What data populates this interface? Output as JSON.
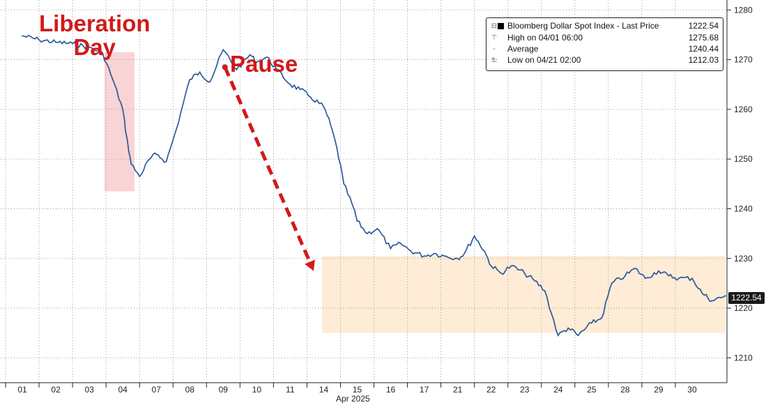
{
  "chart_data": {
    "type": "line",
    "title": "",
    "xlabel": "Apr 2025",
    "ylabel": "",
    "ylim": [
      1205,
      1282
    ],
    "y_ticks": [
      1210,
      1220,
      1230,
      1240,
      1250,
      1260,
      1270,
      1280
    ],
    "x_tick_labels": [
      "01",
      "02",
      "03",
      "04",
      "07",
      "08",
      "09",
      "10",
      "11",
      "14",
      "15",
      "16",
      "17",
      "21",
      "22",
      "23",
      "24",
      "25",
      "28",
      "29",
      "30"
    ],
    "grid": true,
    "series": [
      {
        "name": "Bloomberg Dollar Spot Index - Last Price",
        "color": "#1f5fbf",
        "x": [
          0,
          0.5,
          1,
          1.5,
          2,
          2.4,
          2.7,
          3.0,
          3.1,
          3.25,
          3.5,
          3.8,
          4,
          4.3,
          4.6,
          5,
          5.3,
          5.6,
          6,
          6.4,
          6.8,
          7,
          7.3,
          7.6,
          8,
          8.3,
          8.6,
          9,
          9.2,
          9.4,
          9.6,
          9.9,
          10,
          10.3,
          10.6,
          11,
          11.3,
          11.6,
          12,
          12.3,
          12.6,
          13,
          13.2,
          13.5,
          13.8,
          14,
          14.3,
          14.6,
          15,
          15.3,
          15.6,
          16,
          16.3,
          16.6,
          17,
          17.3,
          17.6,
          18,
          18.3,
          18.6,
          19,
          19.3,
          19.6,
          20,
          20.3,
          20.6,
          21
        ],
        "values": [
          1274.8,
          1274.0,
          1273.5,
          1273.2,
          1272.5,
          1271.3,
          1266.0,
          1260.0,
          1255.0,
          1249.0,
          1246.5,
          1250.0,
          1251.0,
          1249.5,
          1256.0,
          1266.0,
          1267.5,
          1265.5,
          1272.0,
          1268.0,
          1271.0,
          1269.5,
          1270.5,
          1268.0,
          1265.0,
          1264.0,
          1262.5,
          1260.5,
          1257.0,
          1252.0,
          1245.0,
          1240.0,
          1237.5,
          1235.0,
          1236.0,
          1232.0,
          1233.0,
          1231.5,
          1230.5,
          1231.0,
          1230.5,
          1230.0,
          1231.0,
          1234.5,
          1231.5,
          1228.5,
          1227.0,
          1228.5,
          1227.0,
          1225.5,
          1223.5,
          1214.5,
          1216.0,
          1214.5,
          1217.0,
          1218.0,
          1225.0,
          1226.5,
          1228.0,
          1226.0,
          1227.5,
          1226.5,
          1226.0,
          1226.0,
          1223.0,
          1221.5,
          1222.5
        ]
      }
    ],
    "legend": {
      "placement": "top-right",
      "rows": [
        {
          "glyph": "square",
          "name": "Bloomberg Dollar Spot Index - Last Price",
          "value": "1222.54"
        },
        {
          "glyph": "high",
          "name": "High on 04/01 06:00",
          "value": "1275.68"
        },
        {
          "glyph": "average",
          "name": "Average",
          "value": "1240.44"
        },
        {
          "glyph": "low",
          "name": "Low on 04/21 02:00",
          "value": "1212.03"
        }
      ]
    },
    "last_price_label": "1222.54",
    "annotations": {
      "liberation_line1": "Liberation",
      "liberation_line2": "Day",
      "pause": "Pause"
    },
    "shaded_regions": [
      {
        "name": "liberation-day-region",
        "color": "#f7c6c6",
        "x_start": 2.45,
        "x_end": 3.35,
        "y_low": 1243.5,
        "y_high": 1271.5
      },
      {
        "name": "range-region",
        "color": "#fde6c8",
        "x_start": 8.95,
        "x_end": 21.0,
        "y_low": 1215.0,
        "y_high": 1230.5
      }
    ],
    "arrow": {
      "color": "#d11a1a",
      "x_start": 6.05,
      "y_start": 1268.5,
      "x_end": 8.7,
      "y_end": 1227.5
    }
  }
}
